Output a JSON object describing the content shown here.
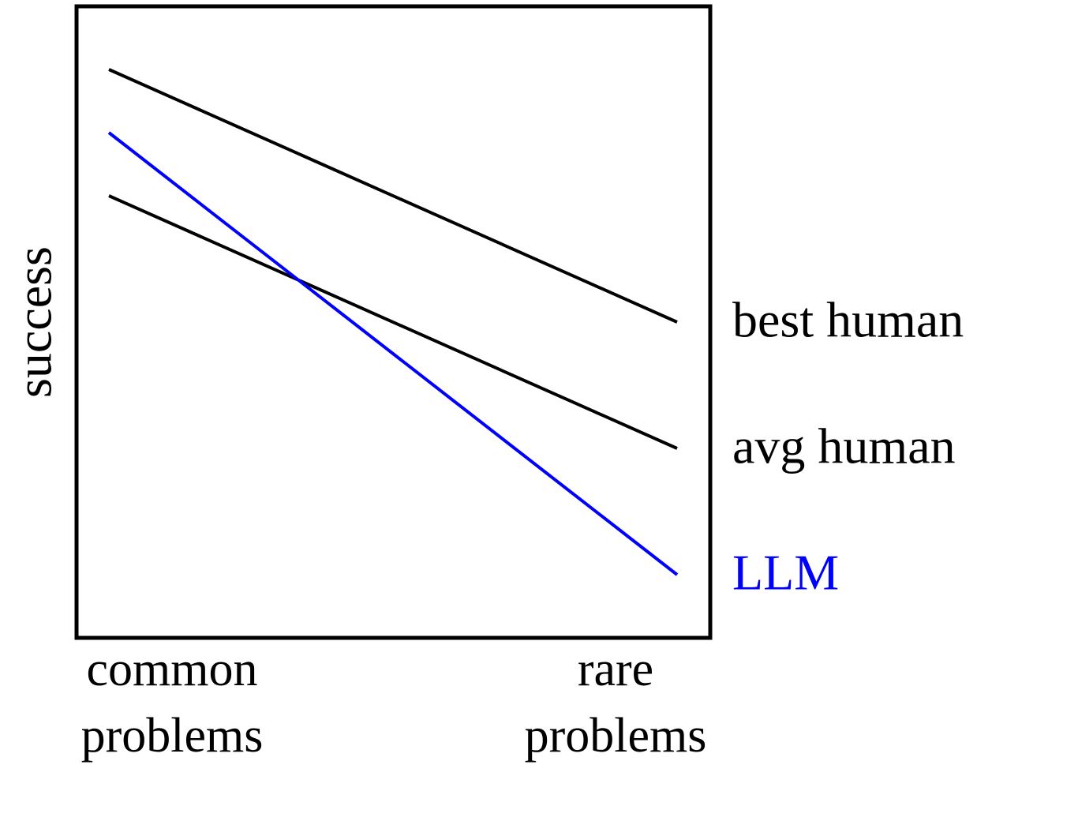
{
  "chart_data": {
    "type": "line",
    "y_label": "success",
    "categories": [
      "common problems",
      "rare problems"
    ],
    "ylim": [
      0,
      100
    ],
    "series": [
      {
        "name": "best human",
        "color": "#000000",
        "values": [
          90,
          50
        ]
      },
      {
        "name": "avg human",
        "color": "#000000",
        "values": [
          70,
          30
        ]
      },
      {
        "name": "LLM",
        "color": "#0000ff",
        "values": [
          80,
          10
        ]
      }
    ]
  }
}
